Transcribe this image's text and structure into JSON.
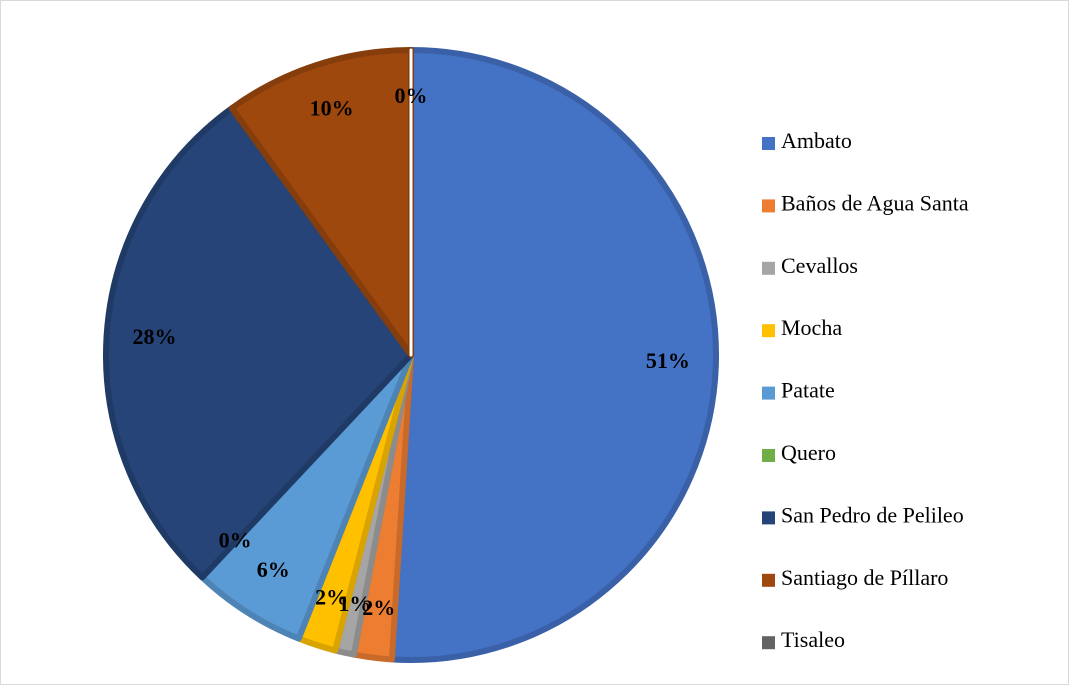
{
  "chart_data": {
    "type": "pie",
    "categories": [
      "Ambato",
      "Baños de Agua Santa",
      "Cevallos",
      "Mocha",
      "Patate",
      "Quero",
      "San Pedro de Pelileo",
      "Santiago de Píllaro",
      "Tisaleo"
    ],
    "values": [
      51,
      2,
      1,
      2,
      6,
      0,
      28,
      10,
      0
    ],
    "value_labels": [
      "51%",
      "2%",
      "1%",
      "2%",
      "6%",
      "0%",
      "28%",
      "10%",
      "0%"
    ],
    "colors": [
      "#4472c4",
      "#ed7d31",
      "#a5a5a5",
      "#ffc000",
      "#5b9bd5",
      "#70ad47",
      "#264478",
      "#9e480e",
      "#636363"
    ],
    "legend": "right"
  }
}
